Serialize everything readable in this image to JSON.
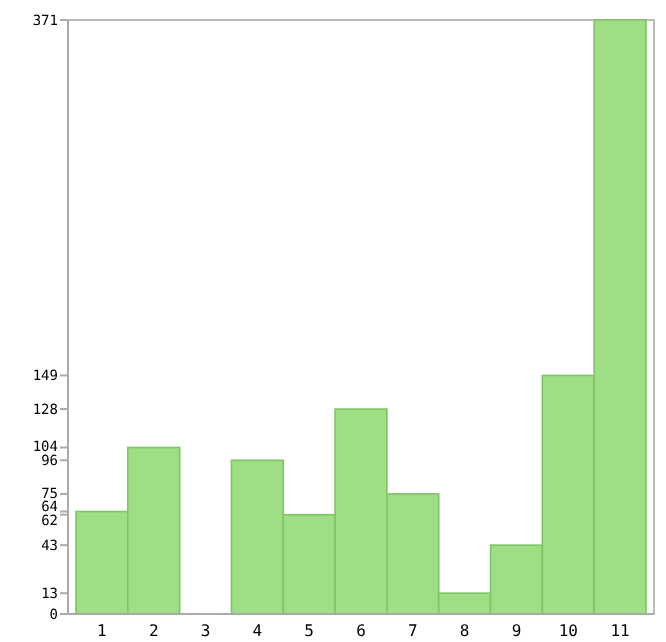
{
  "chart_data": {
    "type": "bar",
    "categories": [
      "1",
      "2",
      "3",
      "4",
      "5",
      "6",
      "7",
      "8",
      "9",
      "10",
      "11"
    ],
    "values": [
      64,
      104,
      0,
      96,
      62,
      128,
      75,
      13,
      43,
      149,
      371
    ],
    "color": "#9ede84",
    "ylim": [
      0,
      371
    ],
    "yticks": [
      0,
      13,
      43,
      62,
      64,
      75,
      96,
      104,
      128,
      149,
      371
    ],
    "grid": false
  }
}
